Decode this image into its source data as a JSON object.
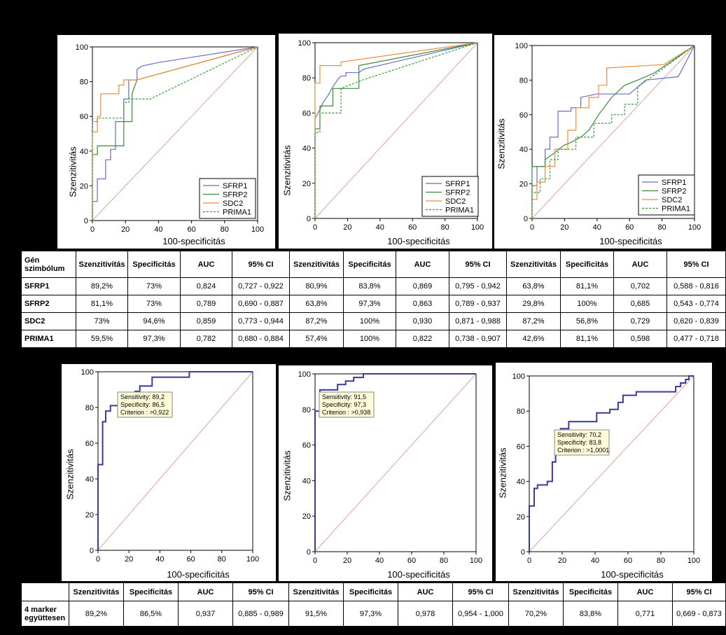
{
  "colors": {
    "SFRP1": "#6a6ac8",
    "SFRP2": "#3a8a3a",
    "SDC2": "#f08c3c",
    "PRIMA1": "#3a9a3a",
    "combined": "#3a3a9a",
    "diagonal": "#e8a0a0"
  },
  "axis_labels": {
    "y": "Szenzitivitás",
    "x": "100-specificitás"
  },
  "legend_labels": [
    "SFRP1",
    "SFRP2",
    "SDC2",
    "PRIMA1"
  ],
  "chart_data": [
    {
      "type": "line",
      "title": "",
      "xlabel": "100-specificitás",
      "ylabel": "Szenzitivitás",
      "xlim": [
        0,
        100
      ],
      "ylim": [
        0,
        100
      ],
      "xticks": [
        0,
        20,
        40,
        60,
        80,
        100
      ],
      "yticks": [
        0,
        20,
        40,
        60,
        80,
        100
      ],
      "legend": "bottom-right",
      "series": [
        {
          "name": "SFRP1",
          "x": [
            0,
            0,
            3,
            3,
            8,
            8,
            11,
            11,
            14,
            14,
            19,
            19,
            22,
            22,
            27,
            27,
            30,
            40,
            100
          ],
          "y": [
            0,
            11,
            11,
            24,
            24,
            35,
            35,
            41,
            41,
            57,
            57,
            70,
            70,
            81,
            81,
            87,
            89,
            91,
            100
          ]
        },
        {
          "name": "SFRP2",
          "x": [
            0,
            0,
            3,
            3,
            19,
            19,
            24,
            24,
            27,
            100
          ],
          "y": [
            0,
            38,
            38,
            43,
            43,
            57,
            57,
            73,
            81,
            100
          ]
        },
        {
          "name": "SDC2",
          "x": [
            0,
            0,
            3,
            3,
            5,
            5,
            16,
            16,
            19,
            19,
            27,
            100
          ],
          "y": [
            0,
            51,
            51,
            60,
            60,
            73,
            73,
            78,
            78,
            81,
            81,
            100
          ]
        },
        {
          "name": "PRIMA1",
          "x": [
            0,
            0,
            3,
            3,
            19,
            19,
            22,
            22,
            35,
            100
          ],
          "y": [
            0,
            57,
            57,
            59,
            59,
            68,
            68,
            70,
            70,
            100
          ]
        }
      ]
    },
    {
      "type": "line",
      "title": "",
      "xlabel": "100-specificitás",
      "ylabel": "Szenzitivitás",
      "xlim": [
        0,
        100
      ],
      "ylim": [
        0,
        100
      ],
      "xticks": [
        0,
        20,
        40,
        60,
        80,
        100
      ],
      "yticks": [
        0,
        20,
        40,
        60,
        80,
        100
      ],
      "legend": "bottom-right",
      "series": [
        {
          "name": "SFRP1",
          "x": [
            0,
            0,
            3,
            5,
            8,
            11,
            14,
            16,
            19,
            19,
            27,
            30,
            100
          ],
          "y": [
            0,
            57,
            62,
            66,
            70,
            75,
            79,
            81,
            81,
            83,
            83,
            85,
            100
          ]
        },
        {
          "name": "SFRP2",
          "x": [
            0,
            0,
            3,
            3,
            11,
            11,
            27,
            27,
            100
          ],
          "y": [
            0,
            51,
            51,
            64,
            64,
            74,
            74,
            87,
            100
          ]
        },
        {
          "name": "SDC2",
          "x": [
            0,
            0,
            3,
            3,
            16,
            16,
            100
          ],
          "y": [
            0,
            77,
            77,
            87,
            87,
            89,
            100
          ]
        },
        {
          "name": "PRIMA1",
          "x": [
            0,
            0,
            3,
            3,
            16,
            16,
            30,
            100
          ],
          "y": [
            0,
            49,
            49,
            60,
            60,
            74,
            79,
            100
          ]
        }
      ]
    },
    {
      "type": "line",
      "title": "",
      "xlabel": "100-specificitás",
      "ylabel": "Szenzitivitás",
      "xlim": [
        0,
        100
      ],
      "ylim": [
        0,
        100
      ],
      "xticks": [
        0,
        20,
        40,
        60,
        80,
        100
      ],
      "yticks": [
        0,
        20,
        40,
        60,
        80,
        100
      ],
      "legend": "bottom-right",
      "series": [
        {
          "name": "SFRP1",
          "x": [
            0,
            0,
            3,
            3,
            8,
            8,
            11,
            11,
            16,
            16,
            24,
            24,
            30,
            30,
            40,
            60,
            70,
            90,
            100
          ],
          "y": [
            0,
            19,
            19,
            30,
            30,
            40,
            40,
            47,
            47,
            62,
            62,
            64,
            64,
            70,
            72,
            72,
            80,
            82,
            100
          ]
        },
        {
          "name": "SFRP2",
          "x": [
            0,
            0,
            8,
            8,
            14,
            19,
            24,
            30,
            35,
            41,
            49,
            57,
            65,
            75,
            100
          ],
          "y": [
            0,
            30,
            30,
            34,
            38,
            42,
            44,
            47,
            51,
            60,
            70,
            77,
            80,
            84,
            100
          ]
        },
        {
          "name": "SDC2",
          "x": [
            0,
            0,
            3,
            3,
            8,
            8,
            14,
            14,
            22,
            22,
            27,
            27,
            35,
            35,
            41,
            41,
            46,
            46,
            81,
            100
          ],
          "y": [
            0,
            11,
            11,
            21,
            21,
            30,
            30,
            40,
            40,
            51,
            51,
            64,
            64,
            70,
            70,
            77,
            77,
            87,
            89,
            100
          ]
        },
        {
          "name": "PRIMA1",
          "x": [
            0,
            0,
            5,
            5,
            11,
            11,
            16,
            16,
            27,
            27,
            38,
            38,
            49,
            49,
            57,
            57,
            65,
            65,
            100
          ],
          "y": [
            0,
            15,
            15,
            23,
            23,
            34,
            34,
            40,
            40,
            47,
            47,
            55,
            55,
            60,
            60,
            66,
            66,
            76,
            100
          ]
        }
      ]
    },
    {
      "type": "line",
      "title": "",
      "xlabel": "100-specificitás",
      "ylabel": "Szenzitivitás",
      "xlim": [
        0,
        100
      ],
      "ylim": [
        0,
        100
      ],
      "xticks": [
        0,
        20,
        40,
        60,
        80,
        100
      ],
      "yticks": [
        0,
        20,
        40,
        60,
        80,
        100
      ],
      "series": [
        {
          "name": "",
          "x": [
            0,
            0,
            3,
            3,
            5,
            5,
            8,
            8,
            14,
            14,
            19,
            19,
            24,
            24,
            27,
            27,
            35,
            35,
            59,
            59,
            100
          ],
          "y": [
            0,
            48,
            48,
            72,
            72,
            78,
            78,
            81,
            81,
            84,
            84,
            86,
            86,
            89,
            89,
            92,
            92,
            97,
            97,
            100,
            100
          ]
        }
      ],
      "annotation": {
        "lines": [
          "Sensitivity: 89,2",
          "Specificity: 86,5",
          "Criterion : >0,922"
        ],
        "point": [
          13.5,
          89.2
        ]
      }
    },
    {
      "type": "line",
      "title": "",
      "xlabel": "100-specificitás",
      "ylabel": "Szenzitivitás",
      "xlim": [
        0,
        100
      ],
      "ylim": [
        0,
        100
      ],
      "xticks": [
        0,
        20,
        40,
        60,
        80,
        100
      ],
      "yticks": [
        0,
        20,
        40,
        60,
        80,
        100
      ],
      "series": [
        {
          "name": "",
          "x": [
            0,
            0,
            3,
            3,
            14,
            14,
            19,
            19,
            24,
            24,
            27,
            27,
            30,
            30,
            100
          ],
          "y": [
            0,
            79,
            79,
            91,
            91,
            94,
            94,
            96,
            96,
            98,
            98,
            98,
            98,
            100,
            100
          ]
        }
      ],
      "annotation": {
        "lines": [
          "Sensitivity: 91,5",
          "Specificity: 97,3",
          "Criterion : >0,938"
        ],
        "point": [
          2.7,
          91.5
        ]
      }
    },
    {
      "type": "line",
      "title": "",
      "xlabel": "100-specificitás",
      "ylabel": "Szenzitivitás",
      "xlim": [
        0,
        100
      ],
      "ylim": [
        0,
        100
      ],
      "xticks": [
        0,
        20,
        40,
        60,
        80,
        100
      ],
      "yticks": [
        0,
        20,
        40,
        60,
        80,
        100
      ],
      "series": [
        {
          "name": "",
          "x": [
            0,
            0,
            3,
            3,
            5,
            5,
            11,
            11,
            14,
            14,
            16,
            16,
            19,
            19,
            24,
            24,
            41,
            41,
            49,
            49,
            54,
            54,
            57,
            57,
            65,
            65,
            89,
            89,
            92,
            92,
            95,
            95,
            97,
            97,
            100
          ],
          "y": [
            0,
            26,
            26,
            36,
            36,
            38,
            38,
            40,
            40,
            51,
            51,
            57,
            57,
            70,
            70,
            74,
            74,
            79,
            79,
            81,
            81,
            85,
            85,
            89,
            89,
            91,
            91,
            94,
            94,
            96,
            96,
            98,
            98,
            100,
            100
          ]
        }
      ],
      "annotation": {
        "lines": [
          "Sensitivity: 70,2",
          "Specificity: 83,8",
          "Criterion : >1,0001"
        ],
        "point": [
          16.2,
          70.2
        ]
      }
    }
  ],
  "table_top": {
    "row_header": [
      "Gén",
      "szimbólum"
    ],
    "col_headers": [
      "Szenzitivitás",
      "Specificitás",
      "AUC",
      "95% CI",
      "Szenzitivitás",
      "Specificitás",
      "AUC",
      "95% CI",
      "Szenzitivitás",
      "Specificitás",
      "AUC",
      "95% CI"
    ],
    "rows": [
      {
        "label": "SFRP1",
        "cells": [
          "89,2%",
          "73%",
          "0,824",
          "0,727 - 0,922",
          "80,9%",
          "83,8%",
          "0,869",
          "0,795 - 0,942",
          "63,8%",
          "81,1%",
          "0,702",
          "0,588 - 0,816"
        ]
      },
      {
        "label": "SFRP2",
        "cells": [
          "81,1%",
          "73%",
          "0,789",
          "0,690 - 0,887",
          "63,8%",
          "97,3%",
          "0,863",
          "0,789 - 0,937",
          "29,8%",
          "100%",
          "0,685",
          "0,543 - 0,774"
        ]
      },
      {
        "label": "SDC2",
        "cells": [
          "73%",
          "94,6%",
          "0,859",
          "0,773 - 0,944",
          "87,2%",
          "100%",
          "0,930",
          "0,871 - 0,988",
          "87,2%",
          "56,8%",
          "0,729",
          "0,620 - 0,839"
        ]
      },
      {
        "label": "PRIMA1",
        "cells": [
          "59,5%",
          "97,3%",
          "0,782",
          "0,680 - 0,884",
          "57,4%",
          "100%",
          "0,822",
          "0,738 - 0,907",
          "42,6%",
          "81,1%",
          "0,598",
          "0,477 - 0,718"
        ]
      }
    ]
  },
  "table_bottom": {
    "col_headers": [
      "Szenzitivitás",
      "Specificitás",
      "AUC",
      "95% CI",
      "Szenzitivitás",
      "Specificitás",
      "AUC",
      "95% CI",
      "Szenzitivitás",
      "Specificitás",
      "AUC",
      "95% CI"
    ],
    "row_label": [
      "4 marker",
      "együttesen"
    ],
    "cells": [
      "89,2%",
      "86,5%",
      "0,937",
      "0,885 - 0,989",
      "91,5%",
      "97,3%",
      "0,978",
      "0,954 - 1,000",
      "70,2%",
      "83,8%",
      "0,771",
      "0,669 - 0,873"
    ]
  }
}
